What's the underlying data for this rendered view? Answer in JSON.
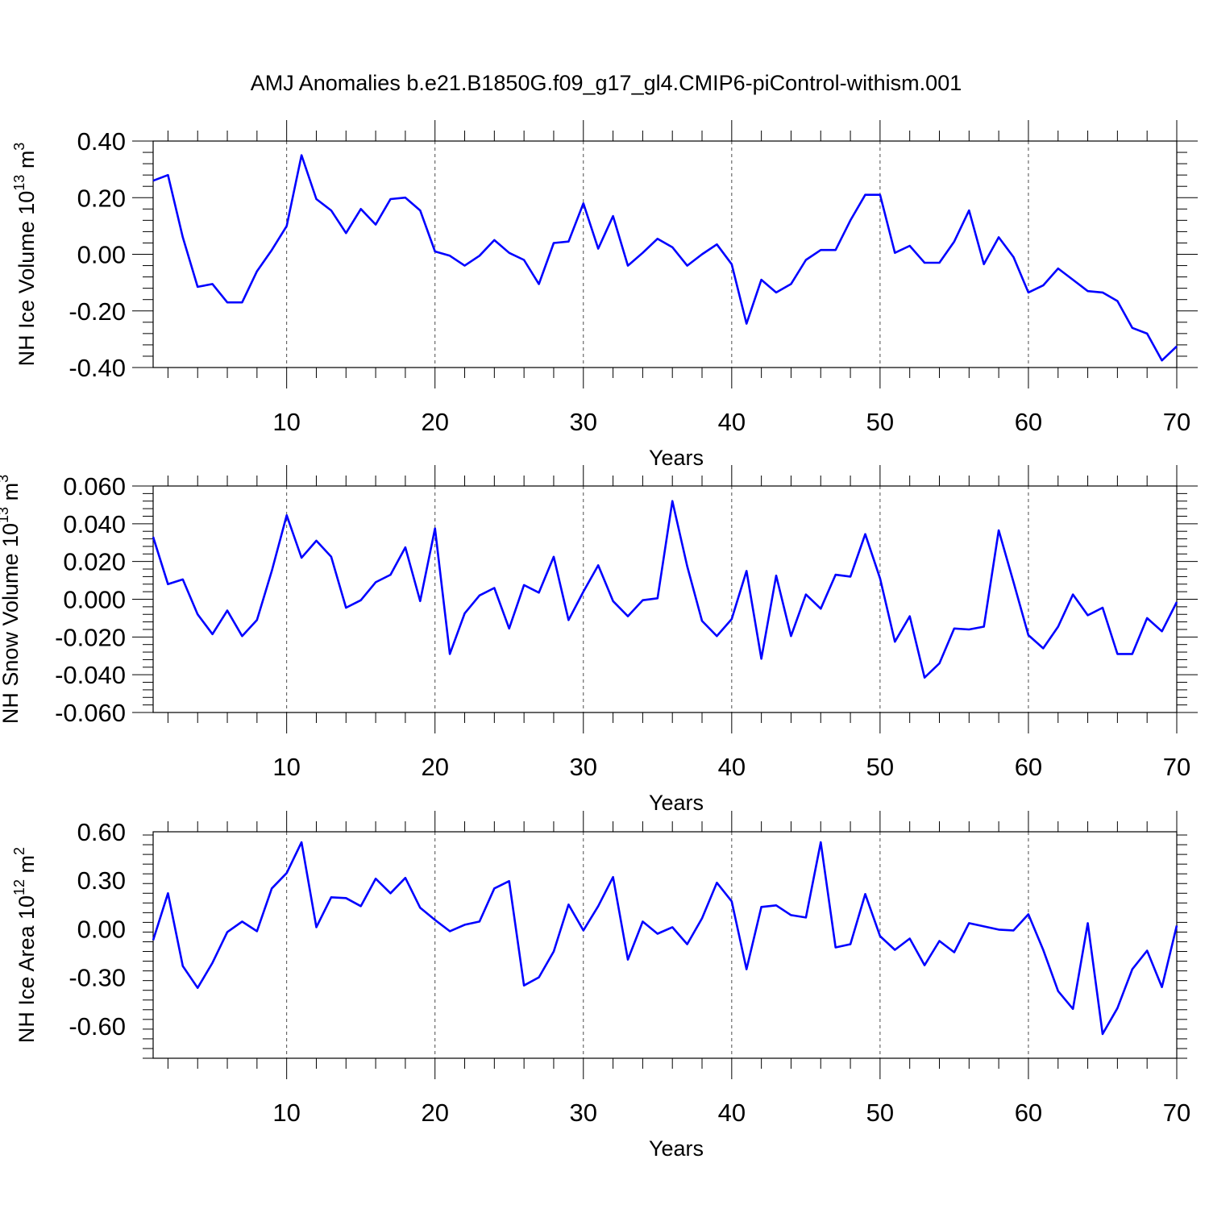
{
  "title": "AMJ Anomalies b.e21.B1850G.f09_g17_gl4.CMIP6-piControl-withism.001",
  "colors": {
    "series": "#0000ff",
    "axis": "#000000",
    "grid": "#000000"
  },
  "chart_data": [
    {
      "type": "line",
      "xlabel": "Years",
      "ylabel": {
        "main": "NH Ice Volume 10",
        "exp": "13",
        "unit": " m",
        "unit_exp": "3"
      },
      "xlim": [
        1,
        70
      ],
      "ylim": [
        -0.4,
        0.4
      ],
      "xticks": [
        10,
        20,
        30,
        40,
        50,
        60,
        70
      ],
      "yticks": [
        -0.4,
        -0.2,
        0.0,
        0.2,
        0.4
      ],
      "ytick_labels": [
        "-0.40",
        "-0.20",
        "0.00",
        "0.20",
        "0.40"
      ],
      "xtick_labels": [
        "10",
        "20",
        "30",
        "40",
        "50",
        "60",
        "70"
      ],
      "grid_x": [
        10,
        20,
        30,
        40,
        50,
        60
      ],
      "series": [
        {
          "name": "NH Ice Volume",
          "x": [
            1,
            2,
            3,
            4,
            5,
            6,
            7,
            8,
            9,
            10,
            11,
            12,
            13,
            14,
            15,
            16,
            17,
            18,
            19,
            20,
            21,
            22,
            23,
            24,
            25,
            26,
            27,
            28,
            29,
            30,
            31,
            32,
            33,
            34,
            35,
            36,
            37,
            38,
            39,
            40,
            41,
            42,
            43,
            44,
            45,
            46,
            47,
            48,
            49,
            50,
            51,
            52,
            53,
            54,
            55,
            56,
            57,
            58,
            59,
            60,
            61,
            62,
            63,
            64,
            65,
            66,
            67,
            68,
            69,
            70
          ],
          "values": [
            0.26,
            0.28,
            0.06,
            -0.115,
            -0.105,
            -0.17,
            -0.17,
            -0.06,
            0.015,
            0.1,
            0.35,
            0.195,
            0.155,
            0.075,
            0.16,
            0.105,
            0.195,
            0.2,
            0.155,
            0.01,
            -0.005,
            -0.04,
            -0.005,
            0.05,
            0.005,
            -0.02,
            -0.105,
            0.04,
            0.045,
            0.18,
            0.02,
            0.135,
            -0.04,
            0.005,
            0.055,
            0.025,
            -0.04,
            0.0,
            0.035,
            -0.035,
            -0.245,
            -0.09,
            -0.135,
            -0.105,
            -0.02,
            0.015,
            0.015,
            0.12,
            0.21,
            0.21,
            0.005,
            0.03,
            -0.03,
            -0.03,
            0.045,
            0.155,
            -0.035,
            0.06,
            -0.01,
            -0.135,
            -0.11,
            -0.05,
            -0.09,
            -0.13,
            -0.135,
            -0.165,
            -0.26,
            -0.28,
            -0.375,
            -0.325
          ]
        }
      ]
    },
    {
      "type": "line",
      "xlabel": "Years",
      "ylabel": {
        "main": "NH Snow Volume 10",
        "exp": "13",
        "unit": " m",
        "unit_exp": "3"
      },
      "xlim": [
        1,
        70
      ],
      "ylim": [
        -0.06,
        0.06
      ],
      "xticks": [
        10,
        20,
        30,
        40,
        50,
        60,
        70
      ],
      "yticks": [
        -0.06,
        -0.04,
        -0.02,
        0.0,
        0.02,
        0.04,
        0.06
      ],
      "ytick_labels": [
        "-0.060",
        "-0.040",
        "-0.020",
        "0.000",
        "0.020",
        "0.040",
        "0.060"
      ],
      "xtick_labels": [
        "10",
        "20",
        "30",
        "40",
        "50",
        "60",
        "70"
      ],
      "grid_x": [
        10,
        20,
        30,
        40,
        50,
        60
      ],
      "series": [
        {
          "name": "NH Snow Volume",
          "x": [
            1,
            2,
            3,
            4,
            5,
            6,
            7,
            8,
            9,
            10,
            11,
            12,
            13,
            14,
            15,
            16,
            17,
            18,
            19,
            20,
            21,
            22,
            23,
            24,
            25,
            26,
            27,
            28,
            29,
            30,
            31,
            32,
            33,
            34,
            35,
            36,
            37,
            38,
            39,
            40,
            41,
            42,
            43,
            44,
            45,
            46,
            47,
            48,
            49,
            50,
            51,
            52,
            53,
            54,
            55,
            56,
            57,
            58,
            59,
            60,
            61,
            62,
            63,
            64,
            65,
            66,
            67,
            68,
            69,
            70
          ],
          "values": [
            0.033,
            0.008,
            0.0105,
            -0.008,
            -0.0185,
            -0.006,
            -0.0195,
            -0.011,
            0.015,
            0.0445,
            0.022,
            0.031,
            0.0225,
            -0.0045,
            -0.0005,
            0.009,
            0.013,
            0.0275,
            -0.001,
            0.0375,
            -0.029,
            -0.0075,
            0.002,
            0.006,
            -0.0155,
            0.0075,
            0.0035,
            0.0225,
            -0.011,
            0.004,
            0.018,
            -0.001,
            -0.009,
            -0.0005,
            0.0005,
            0.052,
            0.0175,
            -0.0115,
            -0.0195,
            -0.0105,
            0.015,
            -0.0315,
            0.0125,
            -0.0195,
            0.0025,
            -0.005,
            0.013,
            0.012,
            0.0345,
            0.011,
            -0.0225,
            -0.009,
            -0.0415,
            -0.034,
            -0.0155,
            -0.016,
            -0.0145,
            0.0365,
            0.009,
            -0.019,
            -0.026,
            -0.0145,
            0.0025,
            -0.0085,
            -0.0045,
            -0.029,
            -0.029,
            -0.01,
            -0.017,
            -0.0015
          ]
        }
      ]
    },
    {
      "type": "line",
      "xlabel": "Years",
      "ylabel": {
        "main": "NH Ice Area 10",
        "exp": "12",
        "unit": " m",
        "unit_exp": "2"
      },
      "xlim": [
        1,
        70
      ],
      "ylim": [
        -0.8,
        0.6
      ],
      "xticks": [
        10,
        20,
        30,
        40,
        50,
        60,
        70
      ],
      "yticks": [
        -0.6,
        -0.3,
        0.0,
        0.3,
        0.6
      ],
      "ytick_labels": [
        "-0.60",
        "-0.30",
        "0.00",
        "0.30",
        "0.60"
      ],
      "xtick_labels": [
        "10",
        "20",
        "30",
        "40",
        "50",
        "60",
        "70"
      ],
      "grid_x": [
        10,
        20,
        30,
        40,
        50,
        60
      ],
      "series": [
        {
          "name": "NH Ice Area",
          "x": [
            1,
            2,
            3,
            4,
            5,
            6,
            7,
            8,
            9,
            10,
            11,
            12,
            13,
            14,
            15,
            16,
            17,
            18,
            19,
            20,
            21,
            22,
            23,
            24,
            25,
            26,
            27,
            28,
            29,
            30,
            31,
            32,
            33,
            34,
            35,
            36,
            37,
            38,
            39,
            40,
            41,
            42,
            43,
            44,
            45,
            46,
            47,
            48,
            49,
            50,
            51,
            52,
            53,
            54,
            55,
            56,
            57,
            58,
            59,
            60,
            61,
            62,
            63,
            64,
            65,
            66,
            67,
            68,
            69,
            70
          ],
          "values": [
            -0.07,
            0.22,
            -0.23,
            -0.365,
            -0.21,
            -0.02,
            0.045,
            -0.015,
            0.25,
            0.345,
            0.535,
            0.01,
            0.195,
            0.19,
            0.14,
            0.31,
            0.22,
            0.315,
            0.13,
            0.055,
            -0.015,
            0.025,
            0.045,
            0.25,
            0.295,
            -0.35,
            -0.3,
            -0.14,
            0.15,
            -0.01,
            0.14,
            0.32,
            -0.19,
            0.045,
            -0.03,
            0.01,
            -0.095,
            0.065,
            0.285,
            0.17,
            -0.25,
            0.135,
            0.145,
            0.085,
            0.07,
            0.535,
            -0.115,
            -0.095,
            0.215,
            -0.045,
            -0.13,
            -0.06,
            -0.225,
            -0.075,
            -0.145,
            0.035,
            0.015,
            -0.005,
            -0.01,
            0.09,
            -0.13,
            -0.385,
            -0.495,
            0.035,
            -0.65,
            -0.49,
            -0.25,
            -0.135,
            -0.36,
            0.02
          ]
        }
      ]
    }
  ]
}
